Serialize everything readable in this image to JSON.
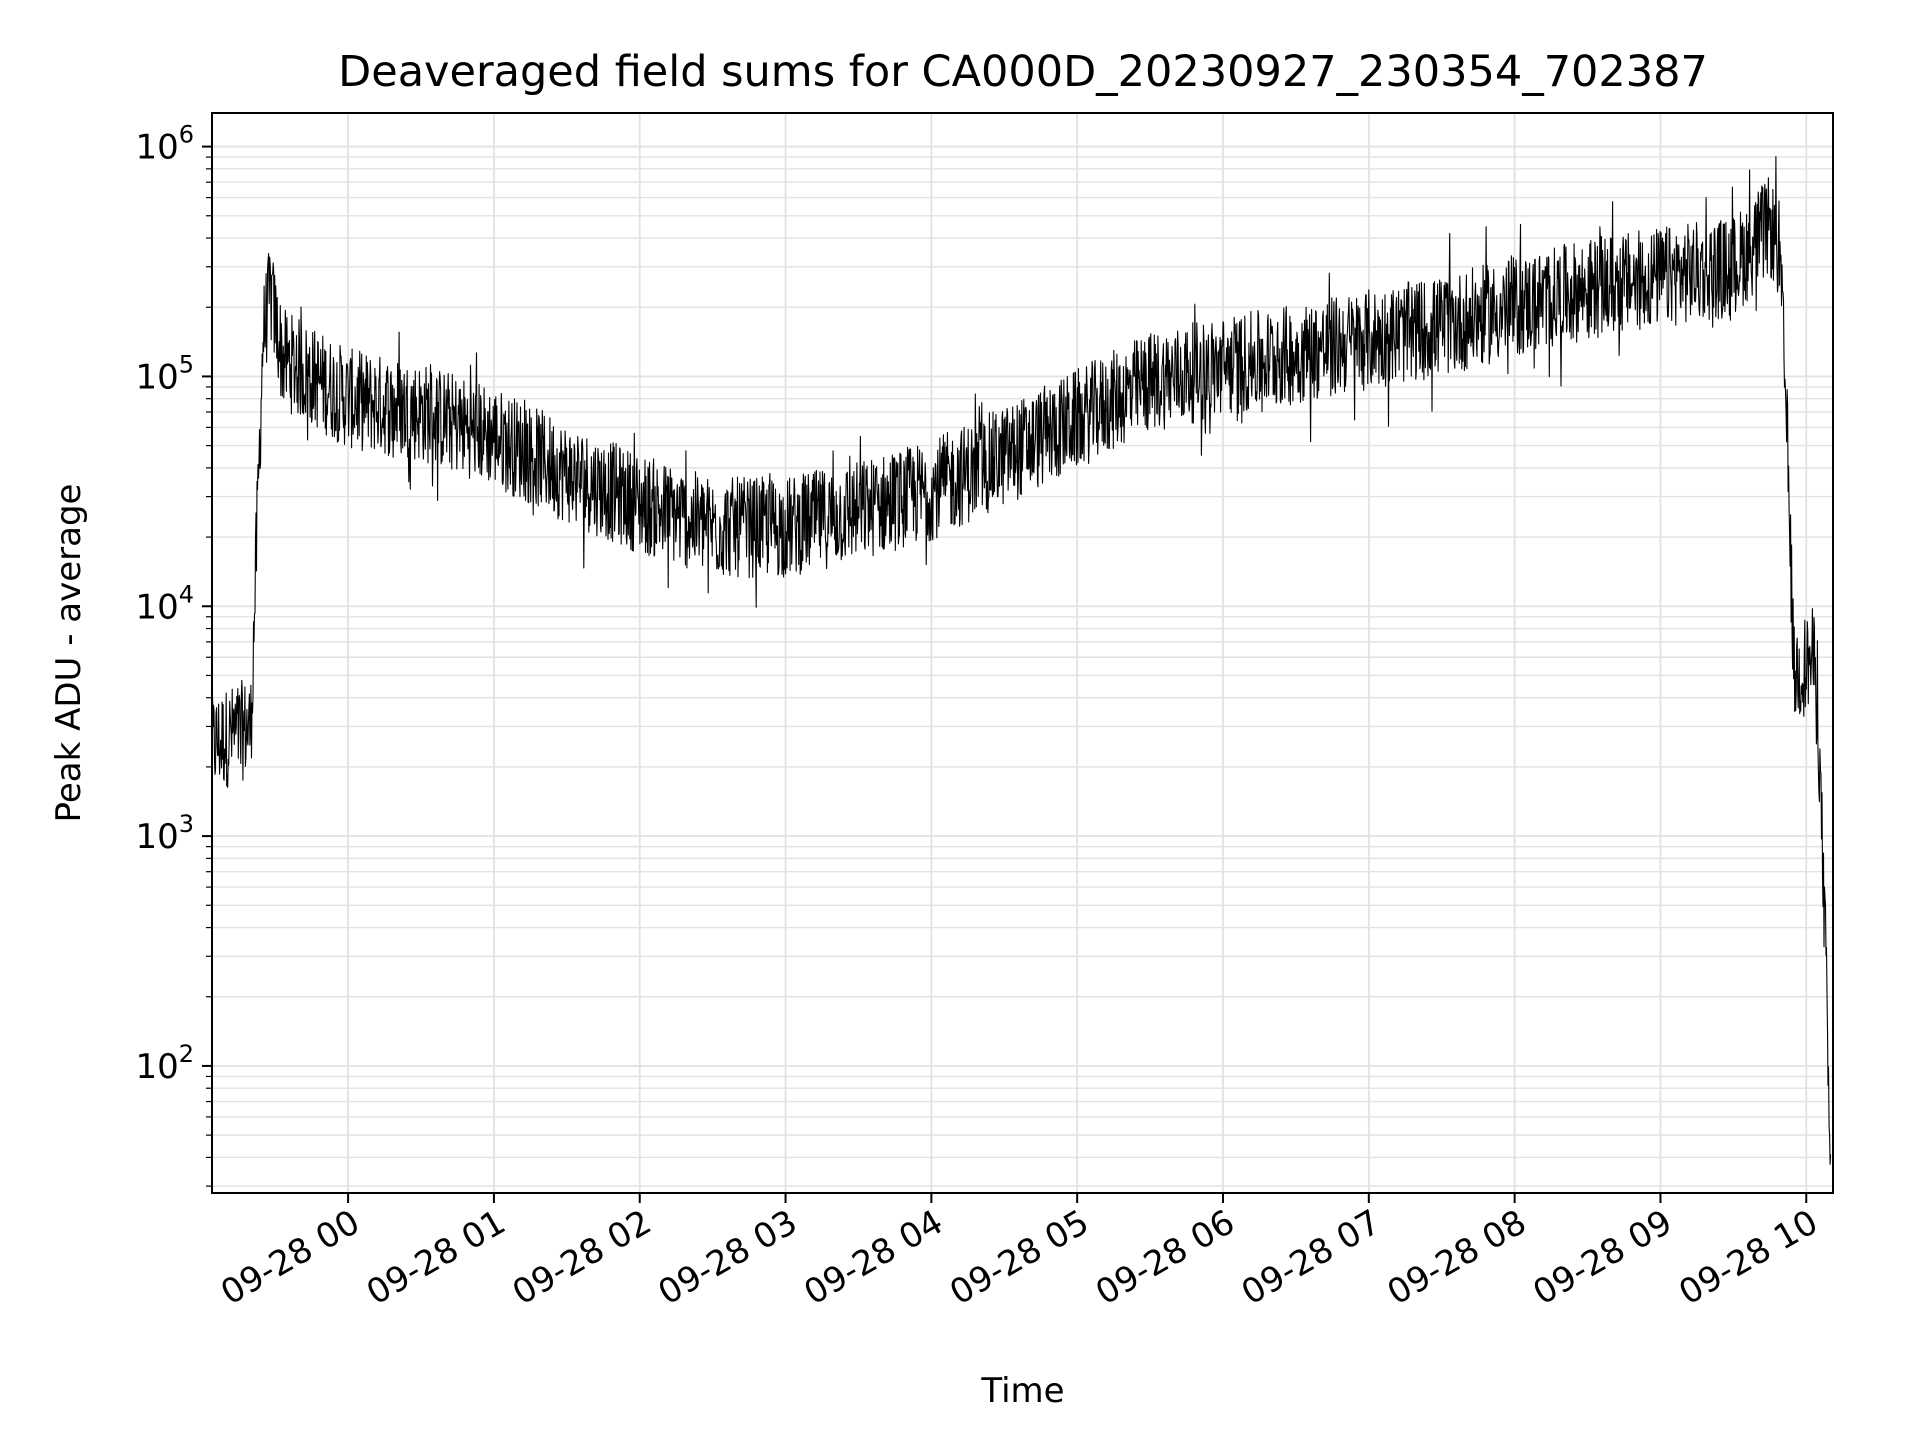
{
  "chart_data": {
    "type": "line",
    "title": "Deaveraged field sums for CA000D_20230927_230354_702387",
    "xlabel": "Time",
    "ylabel": "Peak ADU - average",
    "yscale": "log",
    "ylim": [
      28,
      1400000
    ],
    "xlim": [
      "2023-09-27T23:04",
      "2023-09-28T10:11"
    ],
    "grid": true,
    "x_ticks": [
      {
        "t": "2023-09-28T00:00",
        "label": "09-28 00"
      },
      {
        "t": "2023-09-28T01:00",
        "label": "09-28 01"
      },
      {
        "t": "2023-09-28T02:00",
        "label": "09-28 02"
      },
      {
        "t": "2023-09-28T03:00",
        "label": "09-28 03"
      },
      {
        "t": "2023-09-28T04:00",
        "label": "09-28 04"
      },
      {
        "t": "2023-09-28T05:00",
        "label": "09-28 05"
      },
      {
        "t": "2023-09-28T06:00",
        "label": "09-28 06"
      },
      {
        "t": "2023-09-28T07:00",
        "label": "09-28 07"
      },
      {
        "t": "2023-09-28T08:00",
        "label": "09-28 08"
      },
      {
        "t": "2023-09-28T09:00",
        "label": "09-28 09"
      },
      {
        "t": "2023-09-28T10:00",
        "label": "09-28 10"
      }
    ],
    "y_ticks": [
      {
        "value": 100,
        "base": "10",
        "exp": "2"
      },
      {
        "value": 1000,
        "base": "10",
        "exp": "3"
      },
      {
        "value": 10000,
        "base": "10",
        "exp": "4"
      },
      {
        "value": 100000,
        "base": "10",
        "exp": "5"
      },
      {
        "value": 1000000,
        "base": "10",
        "exp": "6"
      }
    ],
    "series": [
      {
        "color": "#000000",
        "trend": [
          {
            "t": "2023-09-27T23:04",
            "value": 2500
          },
          {
            "t": "2023-09-27T23:20",
            "value": 3000
          },
          {
            "t": "2023-09-27T23:25",
            "value": 150000
          },
          {
            "t": "2023-09-27T23:28",
            "value": 230000
          },
          {
            "t": "2023-09-27T23:33",
            "value": 120000
          },
          {
            "t": "2023-09-28T00:00",
            "value": 80000
          },
          {
            "t": "2023-09-28T00:30",
            "value": 70000
          },
          {
            "t": "2023-09-28T01:00",
            "value": 55000
          },
          {
            "t": "2023-09-28T01:30",
            "value": 38000
          },
          {
            "t": "2023-09-28T02:00",
            "value": 28000
          },
          {
            "t": "2023-09-28T02:30",
            "value": 22000
          },
          {
            "t": "2023-09-28T03:00",
            "value": 22000
          },
          {
            "t": "2023-09-28T03:30",
            "value": 26000
          },
          {
            "t": "2023-09-28T04:00",
            "value": 32000
          },
          {
            "t": "2023-09-28T04:30",
            "value": 45000
          },
          {
            "t": "2023-09-28T05:00",
            "value": 65000
          },
          {
            "t": "2023-09-28T05:30",
            "value": 95000
          },
          {
            "t": "2023-09-28T06:00",
            "value": 110000
          },
          {
            "t": "2023-09-28T06:30",
            "value": 125000
          },
          {
            "t": "2023-09-28T07:00",
            "value": 145000
          },
          {
            "t": "2023-09-28T07:30",
            "value": 165000
          },
          {
            "t": "2023-09-28T08:00",
            "value": 200000
          },
          {
            "t": "2023-09-28T08:30",
            "value": 240000
          },
          {
            "t": "2023-09-28T09:00",
            "value": 270000
          },
          {
            "t": "2023-09-28T09:30",
            "value": 300000
          },
          {
            "t": "2023-09-28T09:45",
            "value": 450000
          },
          {
            "t": "2023-09-28T09:49",
            "value": 350000
          },
          {
            "t": "2023-09-28T09:52",
            "value": 60000
          },
          {
            "t": "2023-09-28T09:55",
            "value": 5000
          },
          {
            "t": "2023-09-28T10:03",
            "value": 6000
          },
          {
            "t": "2023-09-28T10:05",
            "value": 3000
          },
          {
            "t": "2023-09-28T10:08",
            "value": 300
          },
          {
            "t": "2023-09-28T10:10",
            "value": 30
          }
        ],
        "noise_amplitude_decades": 0.22
      }
    ]
  }
}
